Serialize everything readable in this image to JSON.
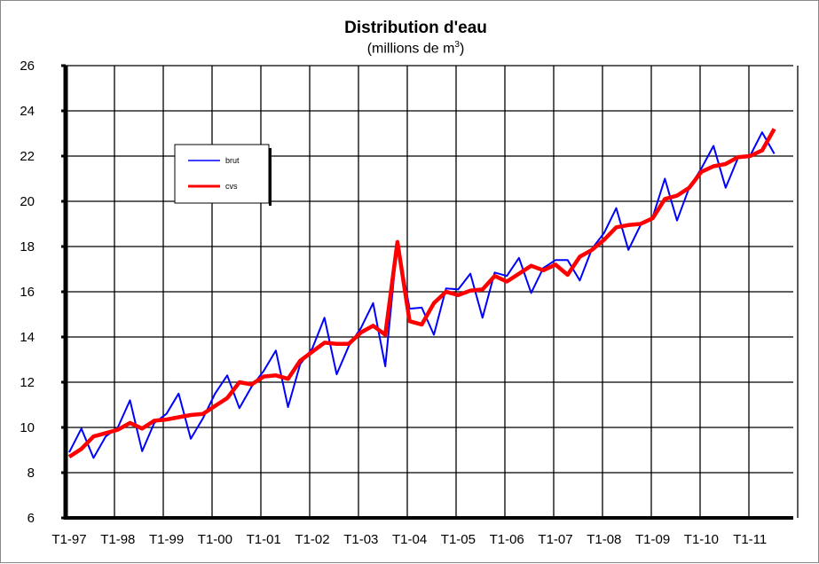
{
  "chart_data": {
    "type": "line",
    "title": "Distribution d'eau",
    "subtitle": "(millions de m",
    "subtitle_sup": "3",
    "subtitle_end": ")",
    "ylim": [
      6,
      26
    ],
    "yticks": [
      6,
      8,
      10,
      12,
      14,
      16,
      18,
      20,
      22,
      24,
      26
    ],
    "xtick_labels": [
      "T1-97",
      "T1-98",
      "T1-99",
      "T1-00",
      "T1-01",
      "T1-02",
      "T1-03",
      "T1-04",
      "T1-05",
      "T1-06",
      "T1-07",
      "T1-08",
      "T1-09",
      "T1-10",
      "T1-11"
    ],
    "grid": true,
    "legend_position": "upper-left",
    "series": [
      {
        "name": "brut",
        "color": "#0000ff",
        "values": [
          8.9,
          9.95,
          8.65,
          9.6,
          10.0,
          11.2,
          8.95,
          10.2,
          10.6,
          11.5,
          9.5,
          10.4,
          11.5,
          12.3,
          10.85,
          11.8,
          12.5,
          13.4,
          10.9,
          12.8,
          13.5,
          14.85,
          12.35,
          13.6,
          14.4,
          15.5,
          12.7,
          18.2,
          15.25,
          15.3,
          14.1,
          16.15,
          16.1,
          16.8,
          14.85,
          16.85,
          16.7,
          17.5,
          15.95,
          17.05,
          17.4,
          17.4,
          16.5,
          17.9,
          18.6,
          19.7,
          17.85,
          18.95,
          19.3,
          21.0,
          19.15,
          20.6,
          21.45,
          22.45,
          20.6,
          21.9,
          22.0,
          23.05,
          22.1
        ]
      },
      {
        "name": "cvs",
        "color": "#ff0000",
        "values": [
          8.7,
          9.05,
          9.6,
          9.75,
          9.9,
          10.2,
          9.95,
          10.3,
          10.35,
          10.45,
          10.55,
          10.6,
          10.95,
          11.3,
          12.0,
          11.9,
          12.25,
          12.3,
          12.15,
          12.95,
          13.35,
          13.75,
          13.7,
          13.7,
          14.2,
          14.5,
          14.1,
          18.2,
          14.7,
          14.55,
          15.5,
          16.0,
          15.85,
          16.05,
          16.1,
          16.7,
          16.45,
          16.8,
          17.15,
          16.95,
          17.2,
          16.75,
          17.55,
          17.85,
          18.3,
          18.85,
          18.95,
          19.0,
          19.25,
          20.1,
          20.25,
          20.6,
          21.3,
          21.55,
          21.65,
          21.95,
          22.0,
          22.25,
          23.2
        ]
      }
    ]
  }
}
